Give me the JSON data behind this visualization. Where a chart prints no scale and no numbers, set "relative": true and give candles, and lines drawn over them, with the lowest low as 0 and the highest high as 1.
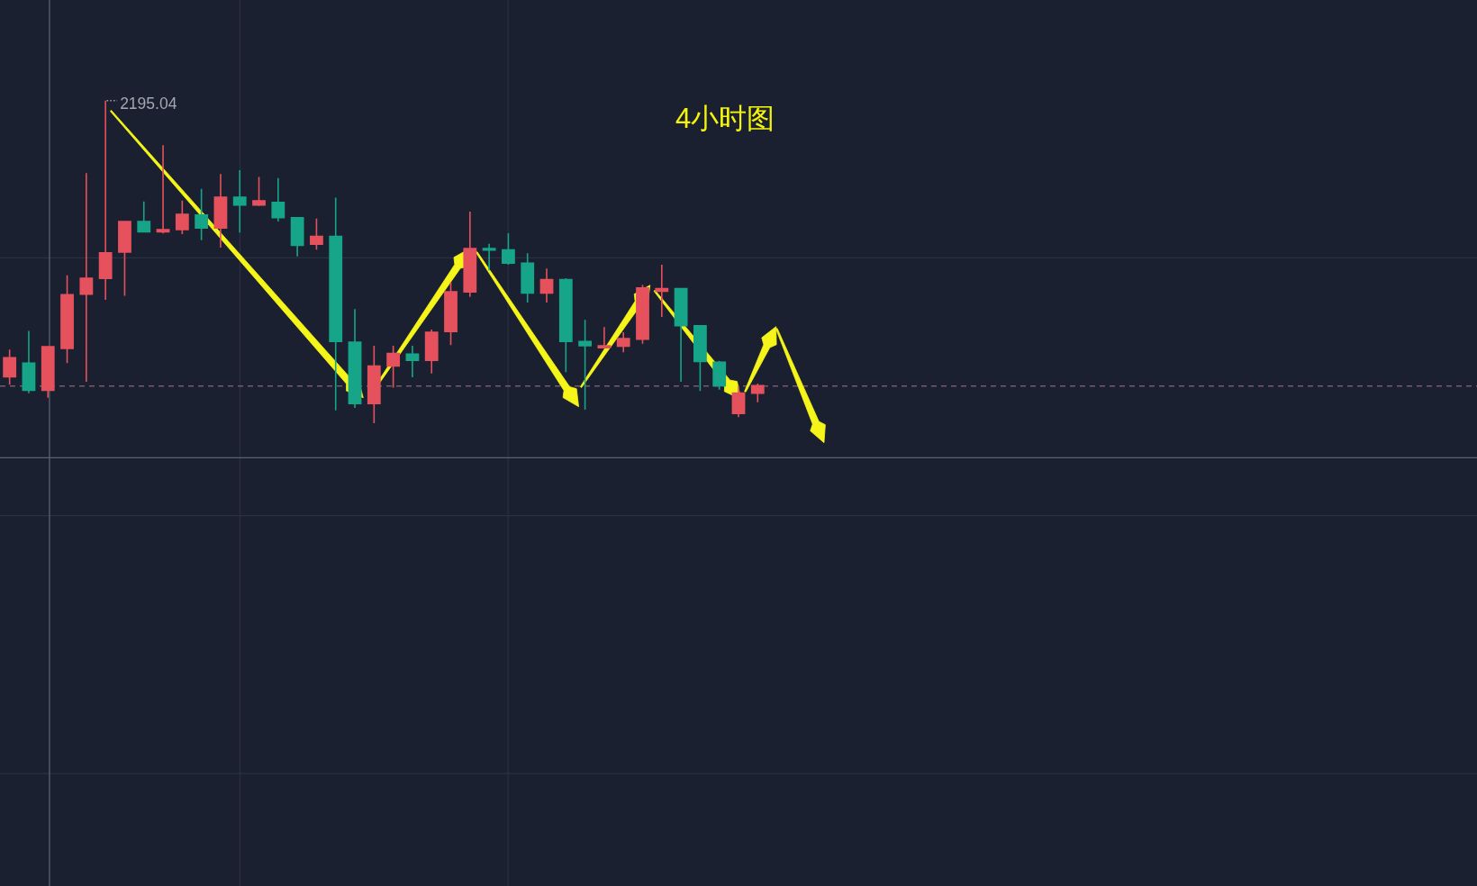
{
  "chart_data": {
    "type": "candlestick",
    "title": "4小时图",
    "relative": true,
    "categories": [
      null,
      null,
      null,
      null,
      null,
      null,
      null,
      null,
      null,
      null,
      null,
      null,
      null,
      null,
      null,
      null,
      null,
      null,
      null,
      null,
      null,
      null,
      null,
      null,
      null,
      null,
      null,
      null,
      null,
      null,
      null,
      null,
      null,
      null,
      null,
      null,
      null,
      null,
      null,
      null,
      null,
      null,
      null,
      null,
      null,
      null,
      null,
      null,
      null,
      null,
      null,
      null,
      null,
      null,
      null,
      null,
      null,
      null,
      null,
      null,
      null,
      null,
      null,
      null,
      null,
      null,
      null,
      null,
      null,
      null,
      null,
      null,
      null,
      null,
      null,
      null,
      null
    ],
    "ohlc": [
      [
        0.144,
        0.228,
        0.119,
        0.203
      ],
      [
        0.186,
        0.286,
        0.093,
        0.102
      ],
      [
        0.102,
        0.237,
        0.079,
        0.237
      ],
      [
        0.232,
        0.458,
        0.186,
        0.398
      ],
      [
        0.4,
        0.775,
        0.128,
        0.449
      ],
      [
        0.449,
        1,
        0.382,
        0.528
      ],
      [
        0.53,
        0.625,
        0.395,
        0.625
      ],
      [
        0.625,
        0.687,
        0.593,
        0.593
      ],
      [
        0.593,
        0.862,
        0.588,
        0.6
      ],
      [
        0.6,
        0.69,
        0.586,
        0.647
      ],
      [
        0.645,
        0.726,
        0.567,
        0.605
      ],
      [
        0.605,
        0.772,
        0.544,
        0.7
      ],
      [
        0.7,
        0.784,
        0.591,
        0.676
      ],
      [
        0.676,
        0.763,
        0.673,
        0.689
      ],
      [
        0.684,
        0.76,
        0.625,
        0.637
      ],
      [
        0.637,
        0.637,
        0.517,
        0.551
      ],
      [
        0.555,
        0.634,
        0.538,
        0.579
      ],
      [
        0.579,
        0.699,
        0.04,
        0.253
      ],
      [
        0.251,
        0.354,
        0.047,
        0.061
      ],
      [
        0.061,
        0.24,
        0,
        0.177
      ],
      [
        0.177,
        0.24,
        0.11,
        0.216
      ],
      [
        0.214,
        0.24,
        0.142,
        0.195
      ],
      [
        0.195,
        0.29,
        0.154,
        0.282
      ],
      [
        0.284,
        0.437,
        0.242,
        0.407
      ],
      [
        0.407,
        0.656,
        0.391,
        0.541
      ],
      [
        0.541,
        0.556,
        0.474,
        0.539
      ],
      [
        0.537,
        0.589,
        0.491,
        0.496
      ],
      [
        0.496,
        0.527,
        0.374,
        0.403
      ],
      [
        0.403,
        0.479,
        0.374,
        0.445
      ],
      [
        0.445,
        0.449,
        0.158,
        0.253
      ],
      [
        0.253,
        0.32,
        0.042,
        0.24
      ],
      [
        0.234,
        0.298,
        0.232,
        0.24
      ],
      [
        0.239,
        0.282,
        0.22,
        0.262
      ],
      [
        0.26,
        0.428,
        0.246,
        0.419
      ],
      [
        0.409,
        0.491,
        0.329,
        0.417
      ],
      [
        0.417,
        0.417,
        0.128,
        0.302
      ],
      [
        0.302,
        0.302,
        0.1,
        0.191
      ],
      [
        0.189,
        0.193,
        0.104,
        0.116
      ],
      [
        0.03,
        0.116,
        0.019,
        0.093
      ],
      [
        0.093,
        0.123,
        0.065,
        0.116
      ],
      null,
      null,
      null,
      null,
      null,
      null,
      null,
      null,
      null,
      null,
      null,
      null,
      null,
      null,
      null,
      null,
      null,
      null,
      null,
      null,
      null,
      null,
      null,
      null,
      null,
      null,
      null,
      null,
      null,
      null,
      null,
      null,
      null,
      null,
      null,
      null,
      null
    ],
    "colors": [
      "#e5515c",
      "#16a588",
      "#e5515c",
      "#e5515c",
      "#e5515c",
      "#e5515c",
      "#e5515c",
      "#16a588",
      "#e5515c",
      "#e5515c",
      "#16a588",
      "#e5515c",
      "#16a588",
      "#e5515c",
      "#16a588",
      "#16a588",
      "#e5515c",
      "#16a588",
      "#16a588",
      "#e5515c",
      "#e5515c",
      "#16a588",
      "#e5515c",
      "#e5515c",
      "#e5515c",
      "#16a588",
      "#16a588",
      "#16a588",
      "#e5515c",
      "#16a588",
      "#16a588",
      "#e5515c",
      "#e5515c",
      "#e5515c",
      "#e5515c",
      "#16a588",
      "#16a588",
      "#16a588",
      "#e5515c",
      "#e5515c",
      null,
      null,
      null,
      null,
      null,
      null,
      null,
      null,
      null,
      null,
      null,
      null,
      null,
      null,
      null,
      null,
      null,
      null,
      null,
      null,
      null,
      null,
      null,
      null,
      null,
      null,
      null,
      null,
      null,
      null,
      null,
      null,
      null,
      null,
      null,
      null,
      null
    ],
    "annotations": [
      "2195.04"
    ],
    "ref_lines": [
      {
        "axis": "y",
        "value": 0.115,
        "color": "#76596a",
        "line_style": "dashed"
      },
      {
        "axis": "y",
        "value": -0.107,
        "color": "#5a6172"
      }
    ]
  }
}
